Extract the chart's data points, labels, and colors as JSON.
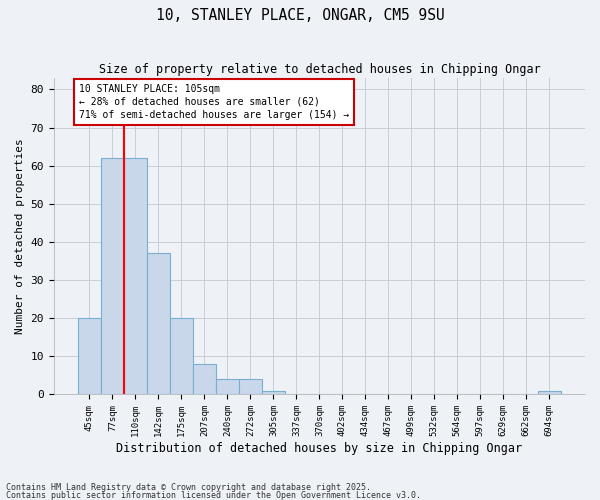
{
  "title1": "10, STANLEY PLACE, ONGAR, CM5 9SU",
  "title2": "Size of property relative to detached houses in Chipping Ongar",
  "xlabel": "Distribution of detached houses by size in Chipping Ongar",
  "ylabel": "Number of detached properties",
  "categories": [
    "45sqm",
    "77sqm",
    "110sqm",
    "142sqm",
    "175sqm",
    "207sqm",
    "240sqm",
    "272sqm",
    "305sqm",
    "337sqm",
    "370sqm",
    "402sqm",
    "434sqm",
    "467sqm",
    "499sqm",
    "532sqm",
    "564sqm",
    "597sqm",
    "629sqm",
    "662sqm",
    "694sqm"
  ],
  "values": [
    20,
    62,
    62,
    37,
    20,
    8,
    4,
    4,
    1,
    0,
    0,
    0,
    0,
    0,
    0,
    0,
    0,
    0,
    0,
    0,
    1
  ],
  "bar_color": "#c8d8ea",
  "bar_edge_color": "#7aaed0",
  "red_line_x": 1.5,
  "ylim": [
    0,
    83
  ],
  "yticks": [
    0,
    10,
    20,
    30,
    40,
    50,
    60,
    70,
    80
  ],
  "annotation_text": "10 STANLEY PLACE: 105sqm\n← 28% of detached houses are smaller (62)\n71% of semi-detached houses are larger (154) →",
  "annotation_box_color": "#ffffff",
  "annotation_box_edge": "#cc0000",
  "footnote1": "Contains HM Land Registry data © Crown copyright and database right 2025.",
  "footnote2": "Contains public sector information licensed under the Open Government Licence v3.0.",
  "background_color": "#eef2f7",
  "grid_color": "#c5cdd8"
}
